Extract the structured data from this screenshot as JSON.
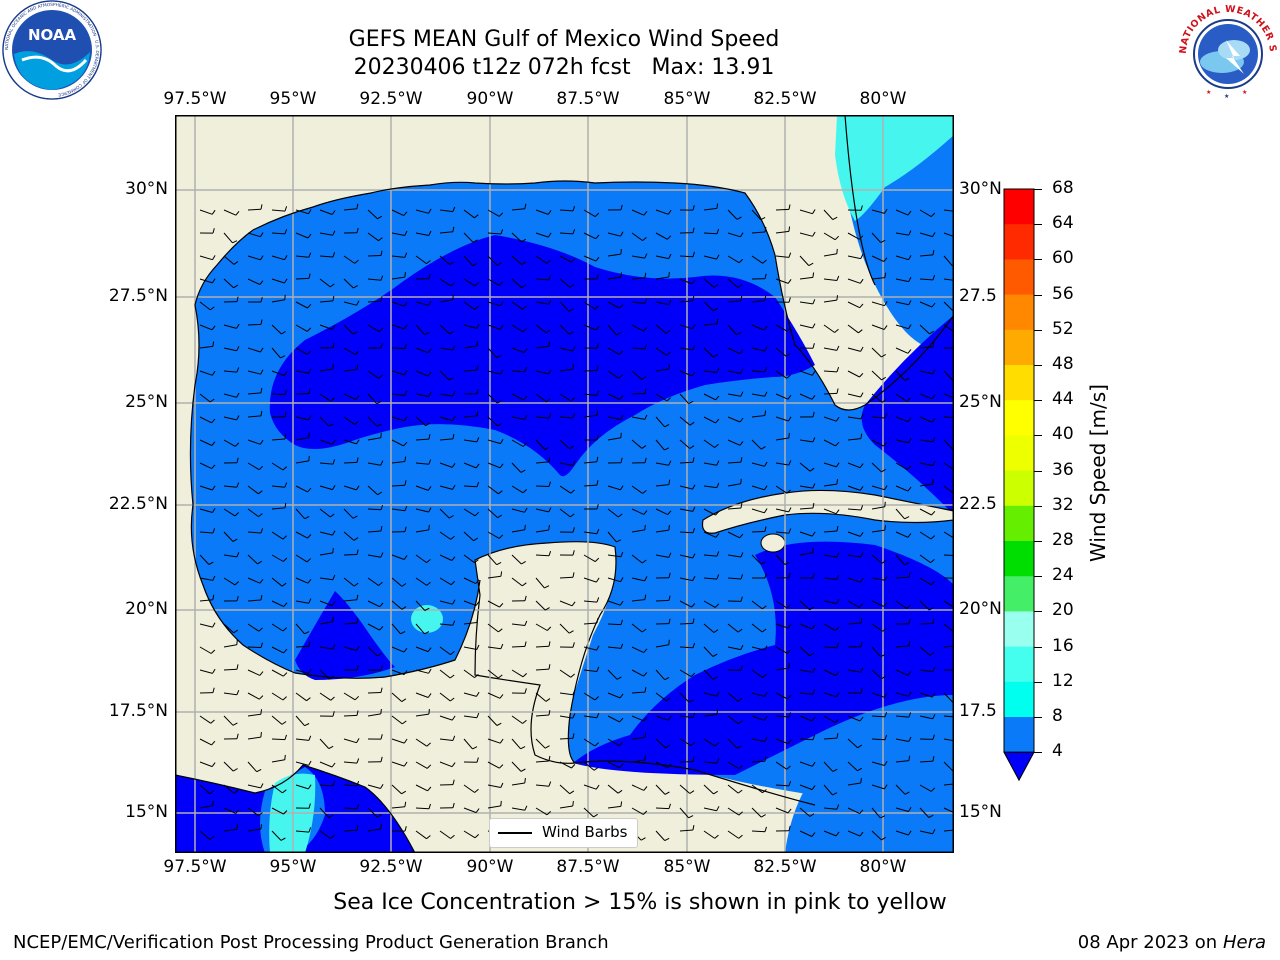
{
  "title": {
    "line1": "GEFS MEAN Gulf of Mexico Wind Speed",
    "line2": "20230406 t12z 072h fcst   Max: 13.91"
  },
  "map": {
    "region": "Gulf of Mexico",
    "variable": "Wind Speed",
    "max_value": 13.91,
    "lon_labels": [
      "97.5°W",
      "95°W",
      "92.5°W",
      "90°W",
      "87.5°W",
      "85°W",
      "82.5°W",
      "80°W"
    ],
    "lat_labels_left": [
      "30°N",
      "27.5°N",
      "25°N",
      "22.5°N",
      "20°N",
      "17.5°N",
      "15°N"
    ],
    "lat_labels_right": [
      "30°N",
      "27.5",
      "25°N",
      "22.5",
      "20°N",
      "17.5",
      "15°N"
    ],
    "colors": {
      "land": "#efefdb",
      "ocean_4_8": "#0a7af8",
      "ocean_lt4": "#0000fa",
      "ocean_8_12": "#00eeee",
      "ocean_12_16": "#46f6ee",
      "grid": "#b0b0b0",
      "coast": "#000000"
    }
  },
  "legend": {
    "label": "Wind Barbs"
  },
  "colorbar": {
    "label": "Wind Speed [m/s]",
    "ticks": [
      "68",
      "64",
      "60",
      "56",
      "52",
      "48",
      "44",
      "40",
      "36",
      "32",
      "28",
      "24",
      "20",
      "16",
      "12",
      "8",
      "4"
    ],
    "bins": [
      {
        "range": "64-68",
        "color": "#ff0000"
      },
      {
        "range": "60-64",
        "color": "#ff2a00"
      },
      {
        "range": "56-60",
        "color": "#ff5a00"
      },
      {
        "range": "52-56",
        "color": "#ff8800"
      },
      {
        "range": "48-52",
        "color": "#ffaa00"
      },
      {
        "range": "44-48",
        "color": "#ffdd00"
      },
      {
        "range": "40-44",
        "color": "#ffff00"
      },
      {
        "range": "36-40",
        "color": "#eeff00"
      },
      {
        "range": "32-36",
        "color": "#ccff00"
      },
      {
        "range": "28-32",
        "color": "#66ee00"
      },
      {
        "range": "24-28",
        "color": "#00dd00"
      },
      {
        "range": "20-24",
        "color": "#44ee66"
      },
      {
        "range": "16-20",
        "color": "#99ffee"
      },
      {
        "range": "12-16",
        "color": "#44ffee"
      },
      {
        "range": "8-12",
        "color": "#00ffee"
      },
      {
        "range": "4-8",
        "color": "#0a7af8"
      },
      {
        "range": "<4",
        "color": "#0000fa"
      }
    ]
  },
  "note": "Sea Ice Concentration > 15% is shown in pink to yellow",
  "footer": {
    "left": "NCEP/EMC/Verification Post Processing Product Generation Branch",
    "right_date": "08 Apr 2023 on",
    "right_host": "Hera"
  },
  "logos": {
    "noaa": {
      "text": "NOAA",
      "ring_text": "NATIONAL OCEANIC AND ATMOSPHERIC ADMINISTRATION · U.S. DEPARTMENT OF COMMERCE"
    },
    "nws": {
      "ring_text": "NATIONAL WEATHER SERVICE"
    }
  }
}
